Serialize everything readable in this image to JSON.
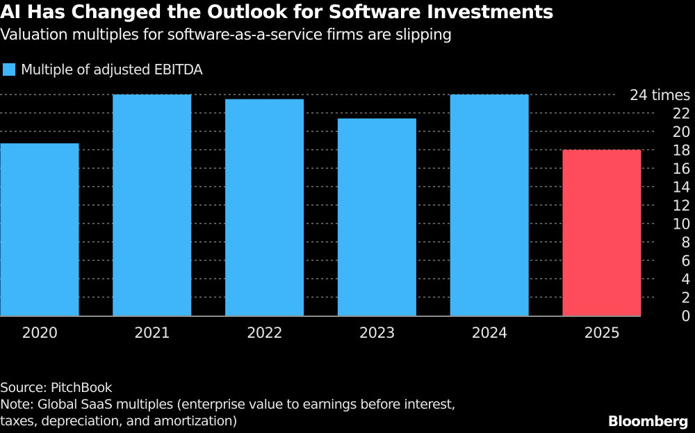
{
  "header": {
    "title": "AI Has Changed the Outlook for Software Investments",
    "subtitle": "Valuation multiples for software-as-a-service firms are slipping"
  },
  "legend": {
    "label": "Multiple of adjusted EBITDA",
    "color": "#40b6fa"
  },
  "chart_data": {
    "type": "bar",
    "title": "AI Has Changed the Outlook for Software Investments",
    "subtitle": "Valuation multiples for software-as-a-service firms are slipping",
    "xlabel": "",
    "ylabel": "Multiple of adjusted EBITDA",
    "categories": [
      "2020",
      "2021",
      "2022",
      "2023",
      "2024",
      "2025"
    ],
    "series": [
      {
        "name": "Multiple of adjusted EBITDA",
        "values": [
          18.7,
          24.0,
          23.5,
          21.4,
          24.0,
          18.0
        ]
      }
    ],
    "bar_colors": [
      "#40b6fa",
      "#40b6fa",
      "#40b6fa",
      "#40b6fa",
      "#40b6fa",
      "#ff4c5a"
    ],
    "ylim": [
      0,
      24
    ],
    "yticks": [
      0,
      2,
      4,
      6,
      8,
      10,
      12,
      14,
      16,
      18,
      20,
      22,
      24
    ],
    "ytick_labels": [
      "0",
      "2",
      "4",
      "6",
      "8",
      "10",
      "12",
      "14",
      "16",
      "18",
      "20",
      "22",
      "24 times"
    ],
    "grid": true,
    "legend_position": "top-left",
    "axis_side": "right"
  },
  "footer": {
    "source": "Source: PitchBook",
    "note_line1": "Note: Global SaaS multiples (enterprise value to earnings before interest,",
    "note_line2": "taxes, depreciation, and amortization)",
    "brand": "Bloomberg"
  }
}
